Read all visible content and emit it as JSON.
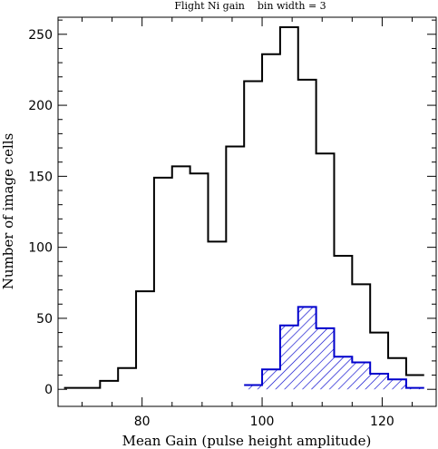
{
  "chart_data": {
    "type": "histogram",
    "title": "Flight Ni gain    bin width = 3",
    "xlabel": "Mean Gain (pulse height amplitude)",
    "ylabel": "Number of image cells",
    "xlim": [
      66,
      129
    ],
    "ylim": [
      -12,
      262
    ],
    "x_ticks": [
      80,
      100,
      120
    ],
    "y_ticks": [
      0,
      50,
      100,
      150,
      200,
      250
    ],
    "grid": false,
    "series": [
      {
        "style": "outline",
        "color": "#000000",
        "edges": [
          67,
          70,
          73,
          76,
          79,
          82,
          85,
          88,
          91,
          94,
          97,
          100,
          103,
          106,
          109,
          112,
          115,
          118,
          121,
          124,
          127
        ],
        "counts": [
          1,
          1,
          6,
          15,
          69,
          149,
          157,
          152,
          104,
          171,
          217,
          236,
          255,
          218,
          166,
          94,
          74,
          40,
          22,
          10
        ]
      },
      {
        "style": "hatched",
        "color": "#0000cc",
        "edges": [
          97,
          100,
          103,
          106,
          109,
          112,
          115,
          118,
          121,
          124,
          127
        ],
        "counts": [
          3,
          14,
          45,
          58,
          43,
          23,
          19,
          11,
          7,
          1
        ]
      }
    ]
  }
}
